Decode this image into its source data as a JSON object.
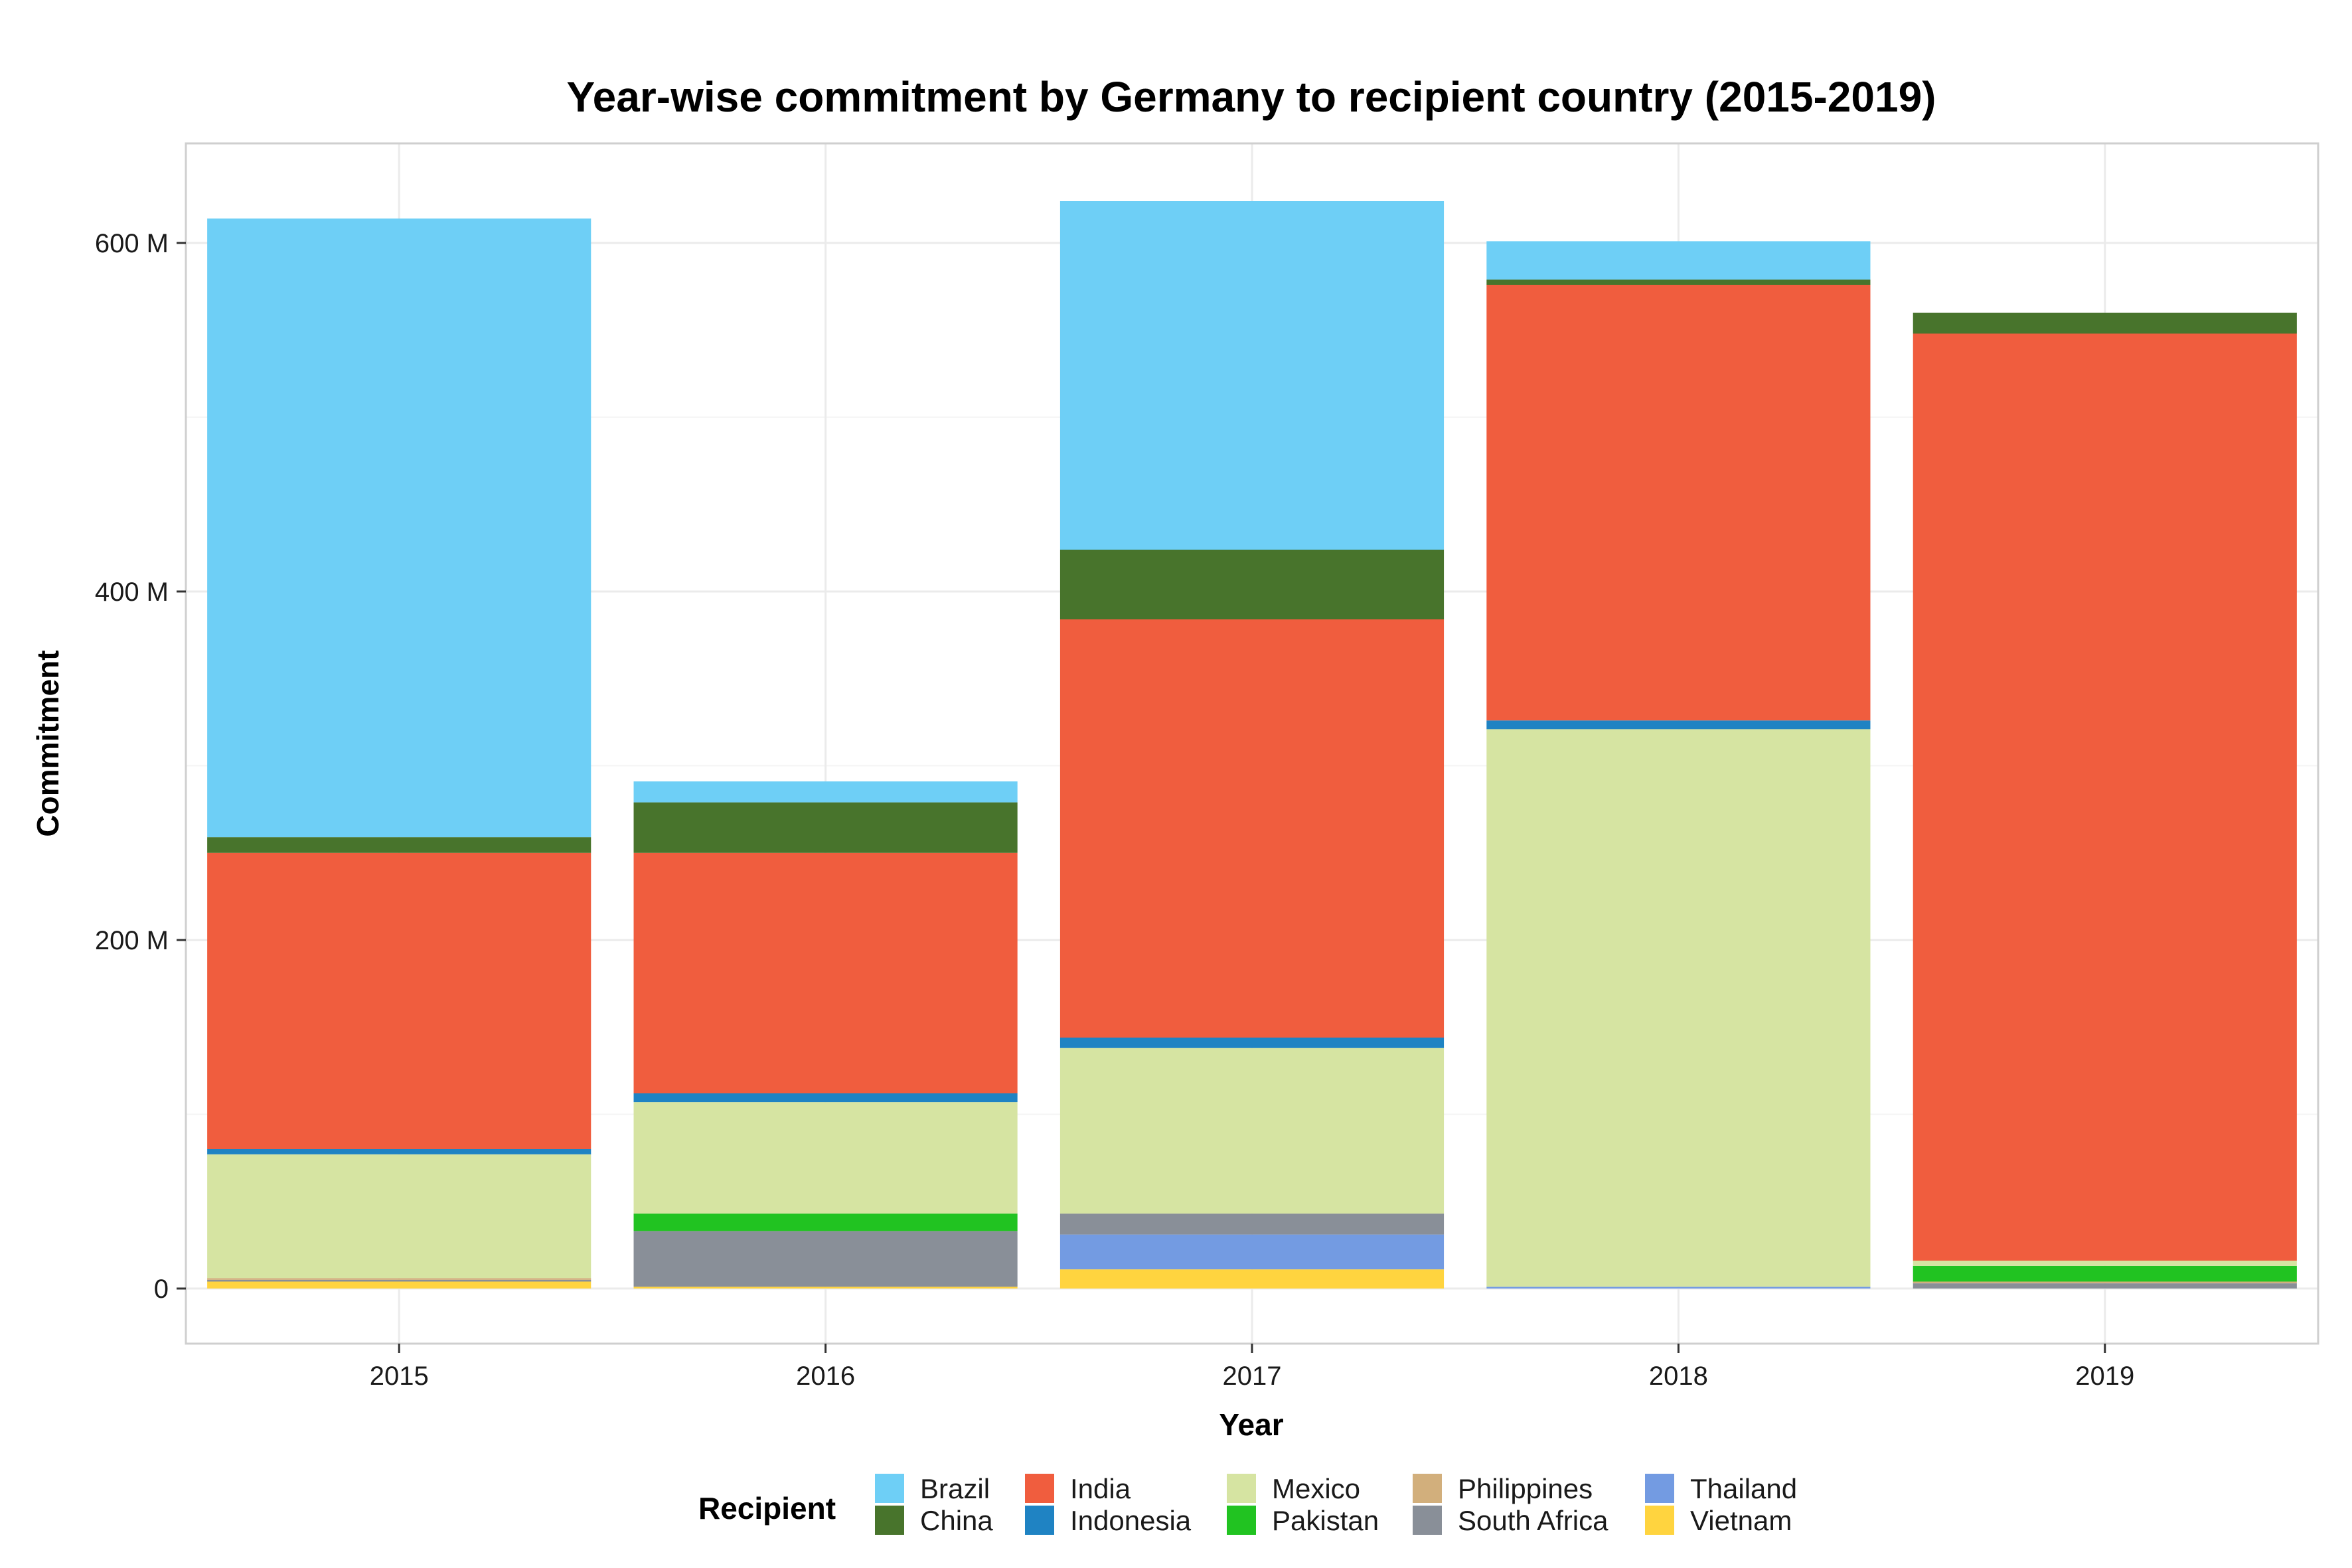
{
  "chart_data": {
    "type": "bar",
    "stacked": true,
    "title": "Year-wise commitment by Germany to recipient country (2015-2019)",
    "xlabel": "Year",
    "ylabel": "Commitment",
    "categories": [
      "2015",
      "2016",
      "2017",
      "2018",
      "2019"
    ],
    "ylim": [
      -30,
      660
    ],
    "yticks": [
      0,
      200,
      400,
      600
    ],
    "ytick_labels": [
      "0",
      "200 M",
      "400 M",
      "600 M"
    ],
    "grid": true,
    "legend_title": "Recipient",
    "legend_position": "bottom",
    "stack_order": [
      "Vietnam",
      "Thailand",
      "South Africa",
      "Philippines",
      "Pakistan",
      "Mexico",
      "Indonesia",
      "India",
      "China",
      "Brazil"
    ],
    "series": [
      {
        "name": "Brazil",
        "color": "#6ECFF6",
        "values": [
          355,
          12,
          200,
          22,
          0
        ]
      },
      {
        "name": "China",
        "color": "#48742C",
        "values": [
          9,
          29,
          40,
          3,
          12
        ]
      },
      {
        "name": "India",
        "color": "#F05D3E",
        "values": [
          170,
          138,
          240,
          250,
          532
        ]
      },
      {
        "name": "Indonesia",
        "color": "#1F83C3",
        "values": [
          3,
          5,
          6,
          5,
          0
        ]
      },
      {
        "name": "Mexico",
        "color": "#D6E4A2",
        "values": [
          71,
          64,
          95,
          320,
          3
        ]
      },
      {
        "name": "Pakistan",
        "color": "#21C321",
        "values": [
          0,
          10,
          0,
          0,
          9
        ]
      },
      {
        "name": "Philippines",
        "color": "#D2AF7C",
        "values": [
          1,
          0,
          0,
          0,
          1
        ]
      },
      {
        "name": "South Africa",
        "color": "#898F98",
        "values": [
          1,
          32,
          12,
          0,
          3
        ]
      },
      {
        "name": "Thailand",
        "color": "#739BE2",
        "values": [
          0,
          0,
          20,
          1,
          0
        ]
      },
      {
        "name": "Vietnam",
        "color": "#FFD43F",
        "values": [
          4,
          1,
          11,
          0,
          0
        ]
      }
    ]
  }
}
